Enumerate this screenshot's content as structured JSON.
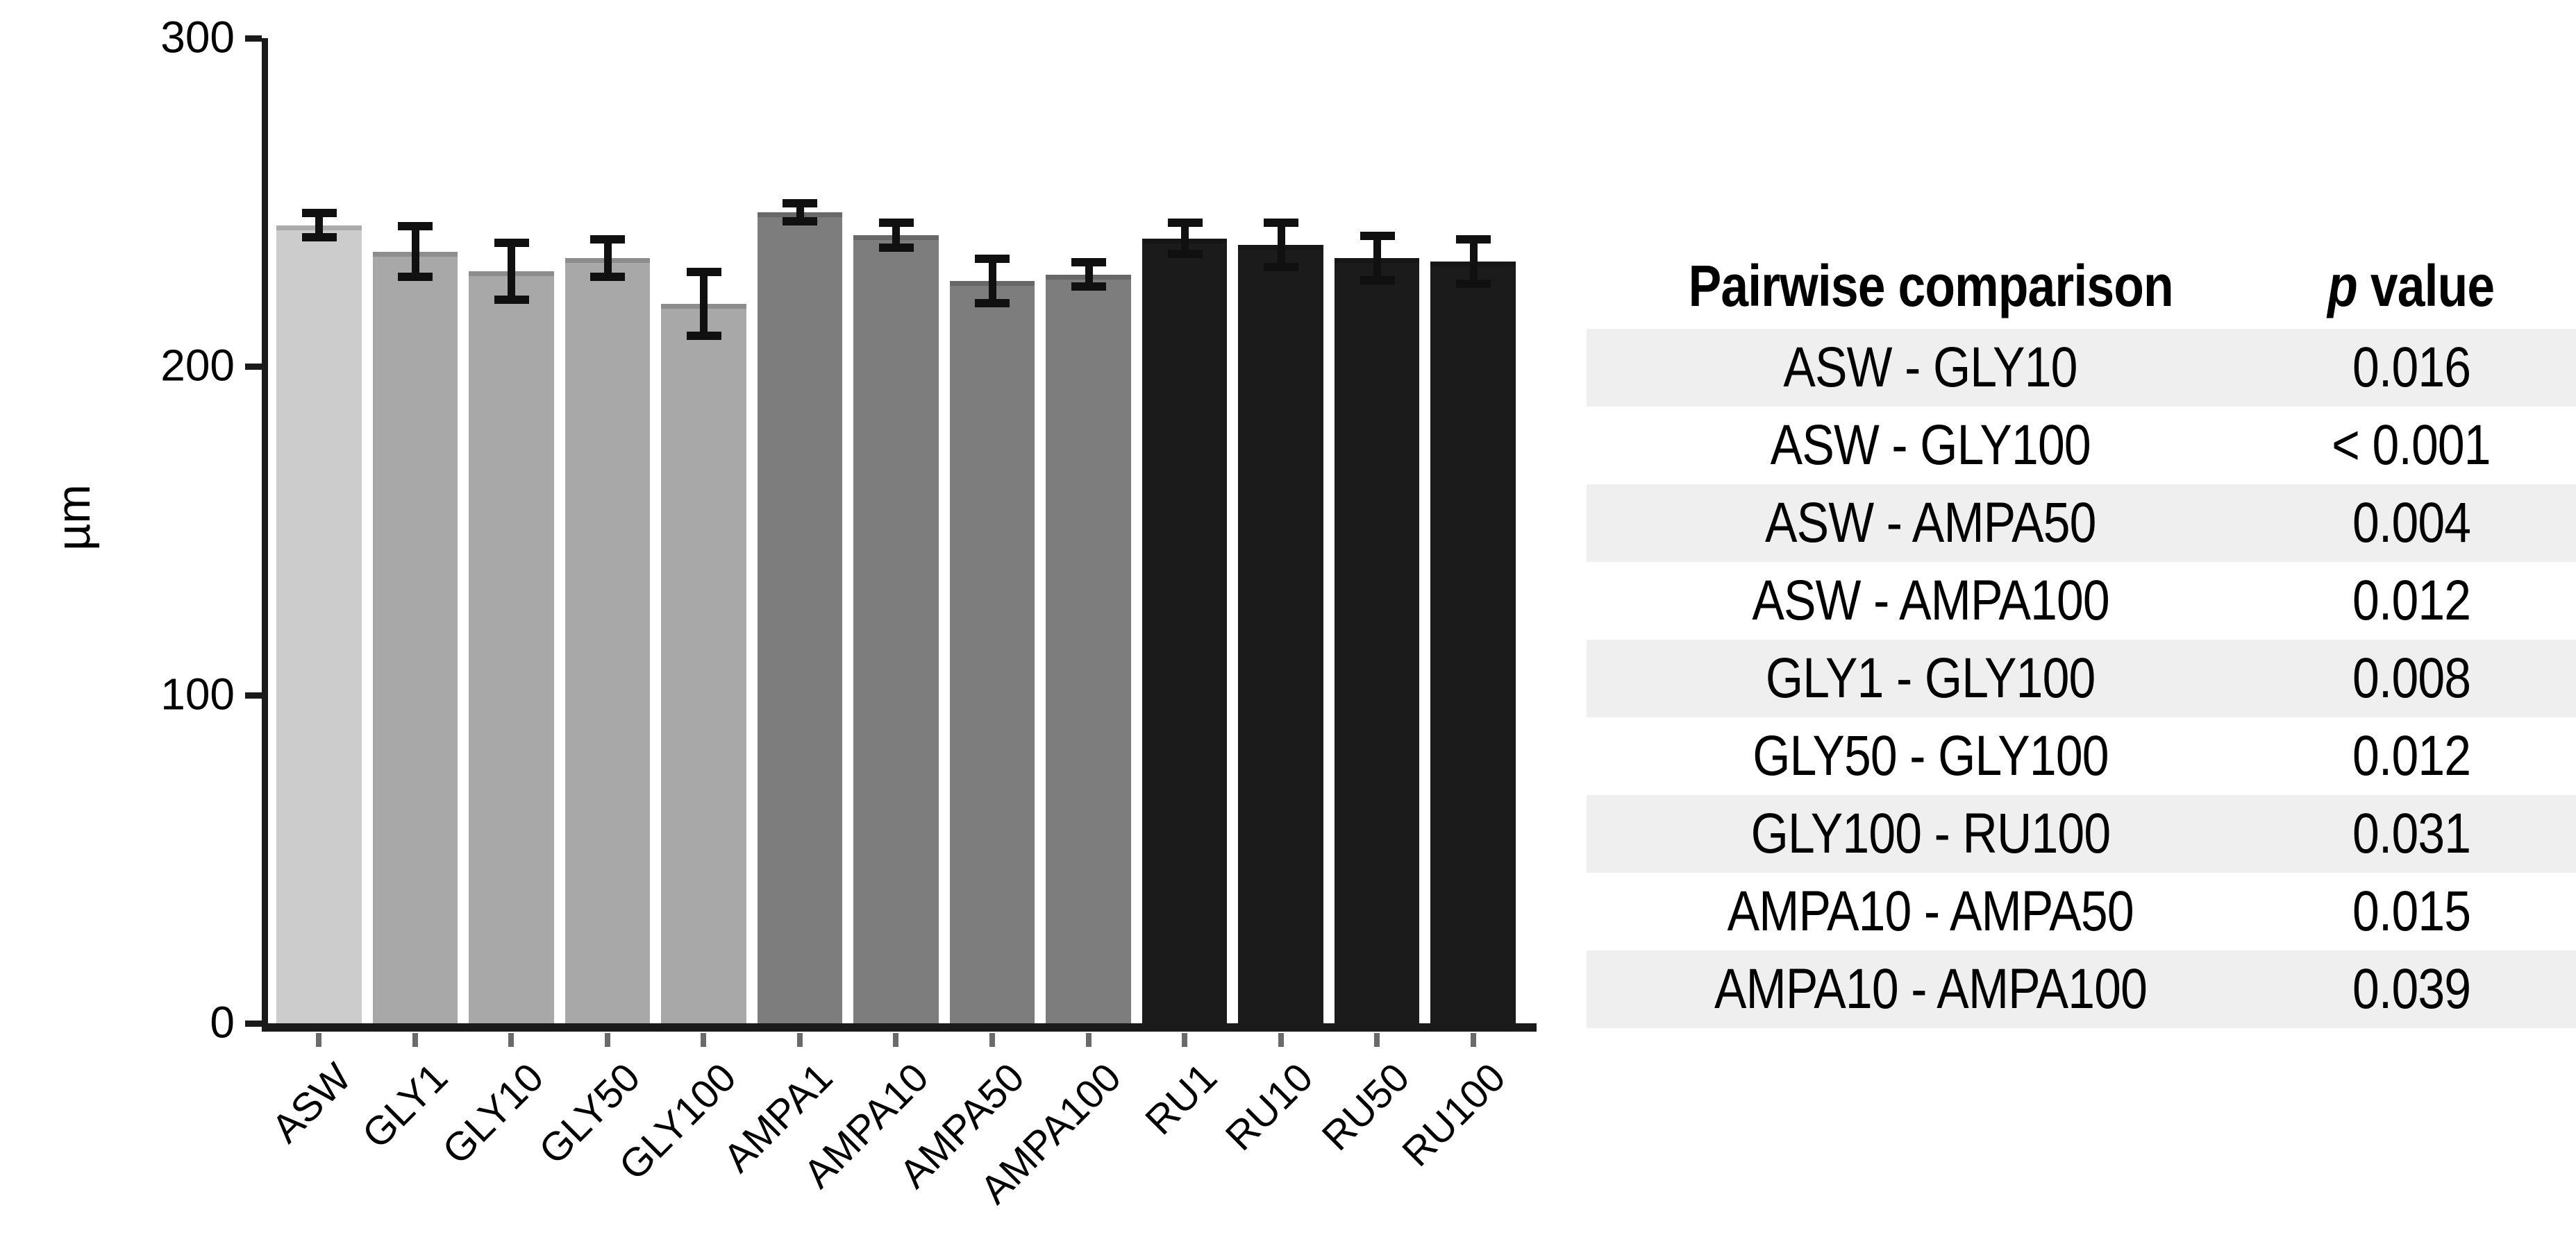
{
  "chart_data": {
    "type": "bar",
    "title": "",
    "xlabel": "",
    "ylabel": "µm",
    "ylim": [
      0,
      300
    ],
    "yticks": [
      300,
      200,
      100,
      0
    ],
    "grid": false,
    "legend": null,
    "categories": [
      "ASW",
      "GLY1",
      "GLY10",
      "GLY50",
      "GLY100",
      "AMPA1",
      "AMPA10",
      "AMPA50",
      "AMPA100",
      "RU1",
      "RU10",
      "RU50",
      "RU100"
    ],
    "values": [
      243,
      235,
      229,
      233,
      219,
      247,
      240,
      226,
      228,
      239,
      237,
      233,
      232
    ],
    "errors": [
      5,
      9,
      10,
      7,
      11,
      4,
      5,
      8,
      5,
      6,
      8,
      8,
      8
    ],
    "bar_colors": [
      "#cccccc",
      "#a8a8a8",
      "#a8a8a8",
      "#a8a8a8",
      "#a8a8a8",
      "#7d7d7d",
      "#7d7d7d",
      "#7d7d7d",
      "#7d7d7d",
      "#1b1b1b",
      "#1b1b1b",
      "#1b1b1b",
      "#1b1b1b"
    ],
    "error_bar_color": "#101010",
    "axis_color": "#1a1a1a"
  },
  "table": {
    "headers": {
      "comparison": "Pairwise comparison",
      "p": {
        "italic": "p",
        "rest": " value"
      }
    },
    "rows": [
      {
        "comparison": "ASW - GLY10",
        "p": "0.016"
      },
      {
        "comparison": "ASW - GLY100",
        "p": "< 0.001"
      },
      {
        "comparison": "ASW - AMPA50",
        "p": "0.004"
      },
      {
        "comparison": "ASW - AMPA100",
        "p": "0.012"
      },
      {
        "comparison": "GLY1 - GLY100",
        "p": "0.008"
      },
      {
        "comparison": "GLY50 - GLY100",
        "p": "0.012"
      },
      {
        "comparison": "GLY100 - RU100",
        "p": "0.031"
      },
      {
        "comparison": "AMPA10 - AMPA50",
        "p": "0.015"
      },
      {
        "comparison": "AMPA10 - AMPA100",
        "p": "0.039"
      }
    ],
    "row_alt_color": "#efefef",
    "row_base_color": "#ffffff"
  }
}
